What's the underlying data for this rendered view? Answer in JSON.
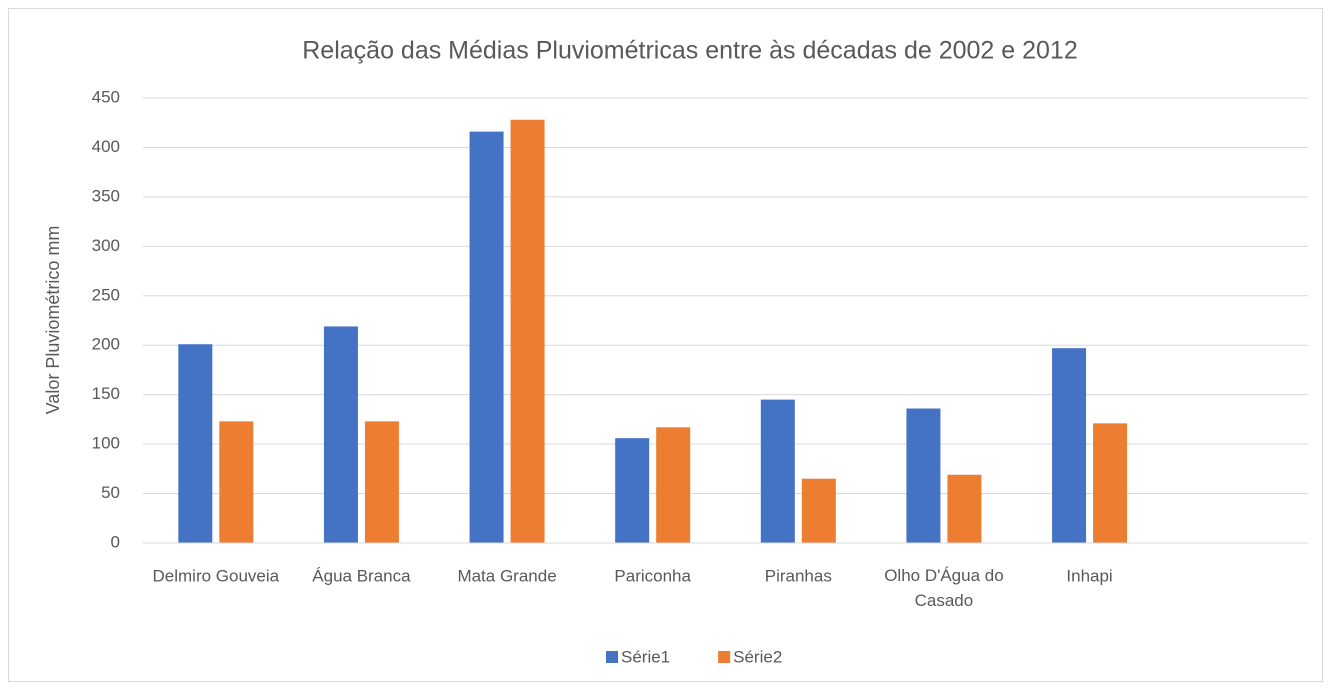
{
  "chart_data": {
    "type": "bar",
    "title": "Relação das Médias Pluviométricas entre às décadas de 2002 e 2012",
    "y_label": "Valor Pluviométrico mm",
    "categories": [
      "Delmiro Gouveia",
      "Água Branca",
      "Mata Grande",
      "Pariconha",
      "Piranhas",
      "Olho D'Água do Casado",
      "Inhapi",
      null
    ],
    "series": [
      {
        "name": "Série1",
        "color": "#4472c4",
        "values": [
          201,
          219,
          416,
          106,
          145,
          136,
          197,
          null
        ]
      },
      {
        "name": "Série2",
        "color": "#ed7d31",
        "values": [
          123,
          123,
          428,
          117,
          65,
          69,
          121,
          null
        ]
      }
    ],
    "ylim": [
      0,
      450
    ],
    "yticks": [
      0,
      50,
      100,
      150,
      200,
      250,
      300,
      350,
      400,
      450
    ],
    "grid": true,
    "legend": "bottom"
  }
}
